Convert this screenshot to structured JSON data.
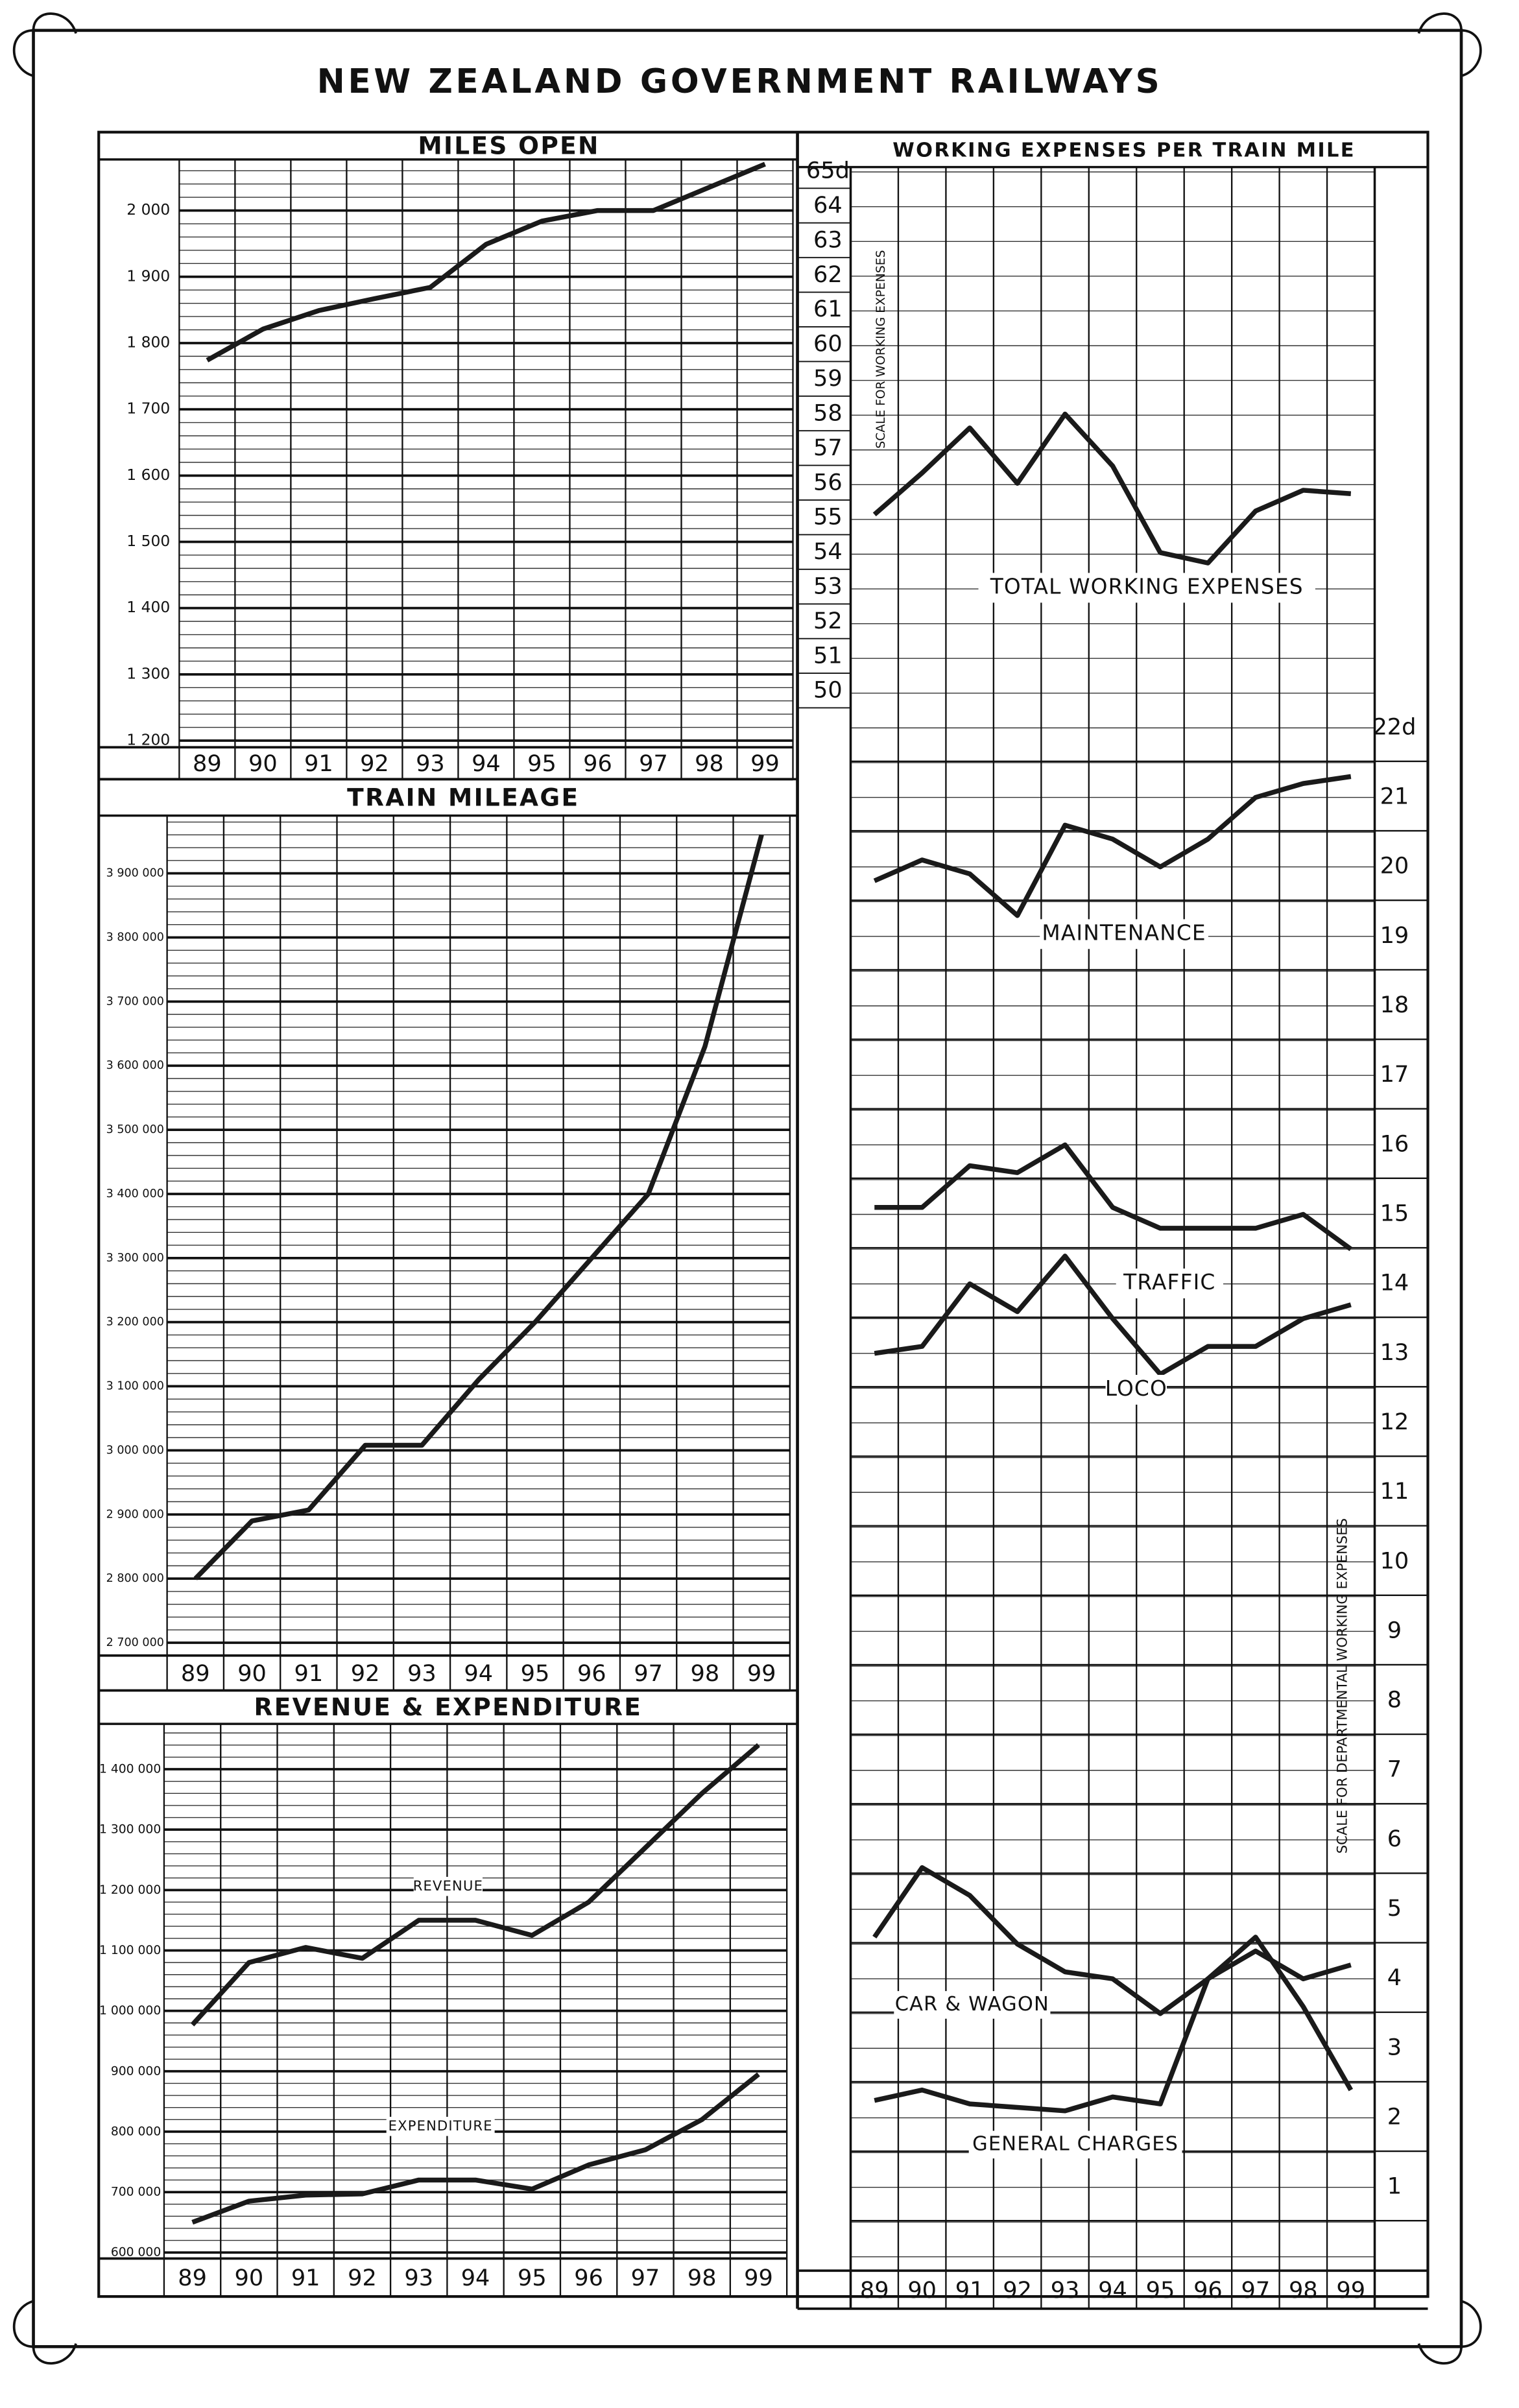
{
  "title": "NEW ZEALAND GOVERNMENT RAILWAYS",
  "chart_data": [
    {
      "type": "line",
      "title": "MILES OPEN",
      "categories": [
        "89",
        "90",
        "91",
        "92",
        "93",
        "94",
        "95",
        "96",
        "97",
        "98",
        "99"
      ],
      "series": [
        {
          "color": "#1a1a1a",
          "values": [
            1774,
            1821,
            1849,
            1867,
            1884,
            1949,
            1984,
            2000,
            2000,
            2035,
            2070
          ]
        }
      ],
      "ylim": [
        1190,
        2077
      ],
      "yticks": [
        {
          "value": 1200,
          "label": "1 200"
        },
        {
          "value": 1300,
          "label": "1 300"
        },
        {
          "value": 1400,
          "label": "1 400"
        },
        {
          "value": 1500,
          "label": "1 500"
        },
        {
          "value": 1600,
          "label": "1 600"
        },
        {
          "value": 1700,
          "label": "1 700"
        },
        {
          "value": 1800,
          "label": "1 800"
        },
        {
          "value": 1900,
          "label": "1 900"
        },
        {
          "value": 2000,
          "label": "2 000"
        }
      ],
      "grid": true
    },
    {
      "type": "line",
      "title": "TRAIN MILEAGE",
      "categories": [
        "89",
        "90",
        "91",
        "92",
        "93",
        "94",
        "95",
        "96",
        "97",
        "98",
        "99"
      ],
      "series": [
        {
          "color": "#1a1a1a",
          "values": [
            2800000,
            2890000,
            2907000,
            3008000,
            3008000,
            3110000,
            3200000,
            3300000,
            3400000,
            3630000,
            3960000
          ]
        }
      ],
      "ylim": [
        2680000,
        3990000
      ],
      "yticks": [
        {
          "value": 2700000,
          "label": "2 700 000"
        },
        {
          "value": 2800000,
          "label": "2 800 000"
        },
        {
          "value": 2900000,
          "label": "2 900 000"
        },
        {
          "value": 3000000,
          "label": "3 000 000"
        },
        {
          "value": 3100000,
          "label": "3 100 000"
        },
        {
          "value": 3200000,
          "label": "3 200 000"
        },
        {
          "value": 3300000,
          "label": "3 300 000"
        },
        {
          "value": 3400000,
          "label": "3 400 000"
        },
        {
          "value": 3500000,
          "label": "3 500 000"
        },
        {
          "value": 3600000,
          "label": "3 600 000"
        },
        {
          "value": 3700000,
          "label": "3 700 000"
        },
        {
          "value": 3800000,
          "label": "3 800 000"
        },
        {
          "value": 3900000,
          "label": "3 900 000"
        }
      ],
      "grid": true
    },
    {
      "type": "line",
      "title": "REVENUE & EXPENDITURE",
      "categories": [
        "89",
        "90",
        "91",
        "92",
        "93",
        "94",
        "95",
        "96",
        "97",
        "98",
        "99"
      ],
      "series": [
        {
          "name": "REVENUE",
          "color": "#1a1a1a",
          "values": [
            977000,
            1080000,
            1105000,
            1087000,
            1150000,
            1150000,
            1125000,
            1180000,
            1270000,
            1360000,
            1440000
          ]
        },
        {
          "name": "EXPENDITURE",
          "color": "#1a1a1a",
          "values": [
            650000,
            685000,
            695000,
            697000,
            720000,
            720000,
            705000,
            745000,
            770000,
            820000,
            895000
          ]
        }
      ],
      "ylim": [
        590000,
        1475000
      ],
      "yticks": [
        {
          "value": 600000,
          "label": "600 000"
        },
        {
          "value": 700000,
          "label": "700 000"
        },
        {
          "value": 800000,
          "label": "800 000"
        },
        {
          "value": 900000,
          "label": "900 000"
        },
        {
          "value": 1000000,
          "label": "1 000 000"
        },
        {
          "value": 1100000,
          "label": "1 100 000"
        },
        {
          "value": 1200000,
          "label": "1 200 000"
        },
        {
          "value": 1300000,
          "label": "1 300 000"
        },
        {
          "value": 1400000,
          "label": "1 400 000"
        }
      ],
      "grid": true
    },
    {
      "type": "line",
      "title": "WORKING EXPENSES PER TRAIN MILE",
      "categories": [
        "89",
        "90",
        "91",
        "92",
        "93",
        "94",
        "95",
        "96",
        "97",
        "98",
        "99"
      ],
      "ylabel": "SCALE FOR WORKING EXPENSES",
      "y2label": "SCALE FOR DEPARTMENTAL WORKING EXPENSES",
      "series": [
        {
          "name": "TOTAL WORKING EXPENSES",
          "color": "#1a1a1a",
          "axis": "y",
          "values": [
            55.1,
            56.3,
            57.6,
            56,
            58,
            56.5,
            54,
            53.7,
            55.2,
            55.8,
            55.7
          ]
        },
        {
          "name": "MAINTENANCE",
          "color": "#1a1a1a",
          "axis": "y2",
          "values": [
            19.8,
            20.1,
            19.9,
            19.3,
            20.6,
            20.4,
            20,
            20.4,
            21,
            21.2,
            21.3
          ]
        },
        {
          "name": "TRAFFIC",
          "color": "#1a1a1a",
          "axis": "y2",
          "values": [
            15.1,
            15.1,
            15.7,
            15.6,
            16,
            15.1,
            14.8,
            14.8,
            14.8,
            15,
            14.5
          ]
        },
        {
          "name": "LOCO",
          "color": "#1a1a1a",
          "axis": "y2",
          "values": [
            13,
            13.1,
            14,
            13.6,
            14.4,
            13.5,
            12.7,
            13.1,
            13.1,
            13.5,
            13.7
          ]
        },
        {
          "name": "CAR & WAGON",
          "color": "#1a1a1a",
          "axis": "y2",
          "values": [
            4.6,
            5.6,
            5.2,
            4.5,
            4.1,
            4,
            3.5,
            4,
            4.4,
            4,
            4.2
          ]
        },
        {
          "name": "GENERAL CHARGES",
          "color": "#1a1a1a",
          "axis": "y2",
          "values": [
            2.25,
            2.4,
            2.2,
            2.15,
            2.1,
            2.3,
            2.2,
            4,
            4.6,
            3.6,
            2.4
          ]
        }
      ],
      "ylim": [
        4.4,
        65.13
      ],
      "yticks": [
        50,
        51,
        52,
        53,
        54,
        55,
        56,
        57,
        58,
        59,
        60,
        61,
        62,
        63,
        64,
        {
          "value": 65,
          "label": "65d"
        }
      ],
      "y2lim": [
        -0.2,
        30.07
      ],
      "y2ticks": [
        1,
        2,
        3,
        4,
        5,
        6,
        7,
        8,
        9,
        10,
        11,
        12,
        13,
        14,
        15,
        16,
        17,
        18,
        19,
        20,
        21,
        {
          "value": 22,
          "label": "22d"
        }
      ],
      "grid": true
    }
  ]
}
